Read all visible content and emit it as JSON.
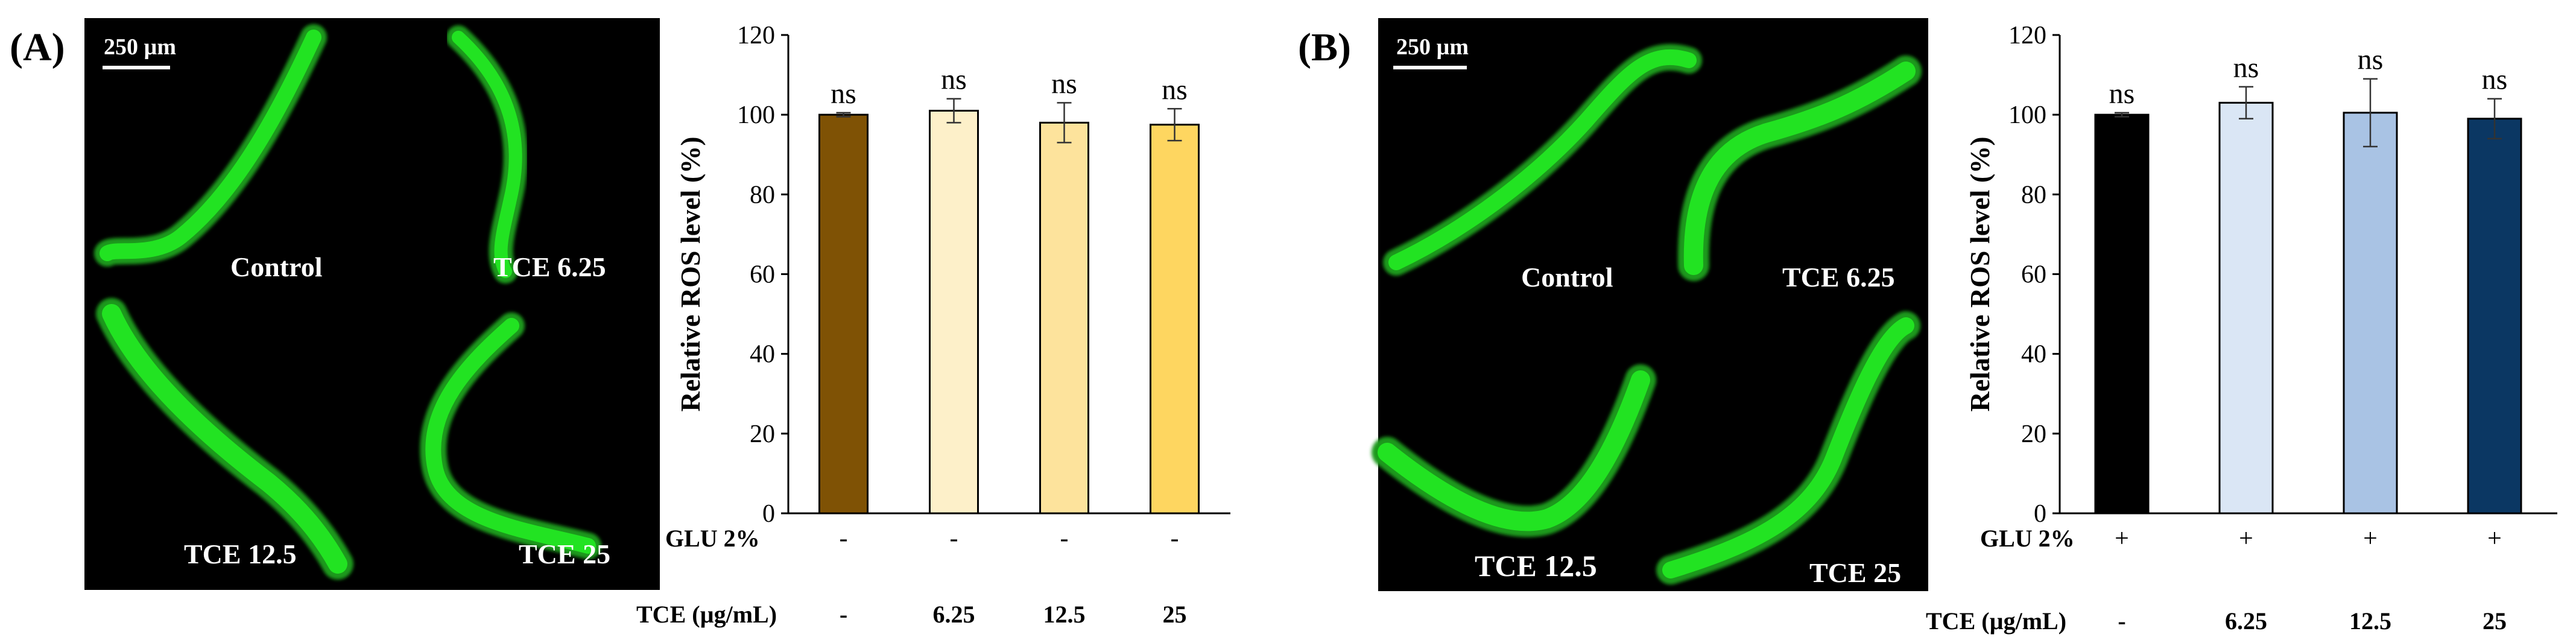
{
  "panels": [
    {
      "id": "A",
      "label": "(A)",
      "scale_bar": "250 µm",
      "worms": [
        {
          "label": "Control"
        },
        {
          "label": "TCE 6.25"
        },
        {
          "label": "TCE 12.5"
        },
        {
          "label": "TCE 25"
        }
      ],
      "row_labels": {
        "glu": "GLU 2%",
        "tce": "TCE (µg/mL)"
      }
    },
    {
      "id": "B",
      "label": "(B)",
      "scale_bar": "250 µm",
      "worms": [
        {
          "label": "Control"
        },
        {
          "label": "TCE 6.25"
        },
        {
          "label": "TCE 12.5"
        },
        {
          "label": "TCE 25"
        }
      ],
      "row_labels": {
        "glu": "GLU 2%",
        "tce": "TCE (µg/mL)"
      }
    }
  ],
  "chart_data": [
    {
      "type": "bar",
      "panel": "A",
      "title": "",
      "xlabel": "",
      "ylabel": "Relative ROS level (%)",
      "ylim": [
        0,
        120
      ],
      "yticks": [
        "0",
        "20",
        "40",
        "60",
        "80",
        "100",
        "120"
      ],
      "categories": [
        "Control",
        "TCE 6.25",
        "TCE 12.5",
        "TCE 25"
      ],
      "values": [
        100,
        101,
        98,
        97.5
      ],
      "errors": [
        0.5,
        3,
        5,
        4
      ],
      "significance": [
        "ns",
        "ns",
        "ns",
        "ns"
      ],
      "colors": [
        "#7f5205",
        "#fdf0c9",
        "#fde39c",
        "#fed660"
      ],
      "glu_row": [
        "-",
        "-",
        "-",
        "-"
      ],
      "tce_row": [
        "-",
        "6.25",
        "12.5",
        "25"
      ]
    },
    {
      "type": "bar",
      "panel": "B",
      "title": "",
      "xlabel": "",
      "ylabel": "Relative ROS level (%)",
      "ylim": [
        0,
        120
      ],
      "yticks": [
        "0",
        "20",
        "40",
        "60",
        "80",
        "100",
        "120"
      ],
      "categories": [
        "Control",
        "TCE 6.25",
        "TCE 12.5",
        "TCE 25"
      ],
      "values": [
        100,
        103,
        100.5,
        99
      ],
      "errors": [
        0.5,
        4,
        8.5,
        5
      ],
      "significance": [
        "ns",
        "ns",
        "ns",
        "ns"
      ],
      "colors": [
        "#000000",
        "#dae6f5",
        "#a9c3e4",
        "#0b3763"
      ],
      "glu_row": [
        "+",
        "+",
        "+",
        "+"
      ],
      "tce_row": [
        "-",
        "6.25",
        "12.5",
        "25"
      ]
    }
  ]
}
